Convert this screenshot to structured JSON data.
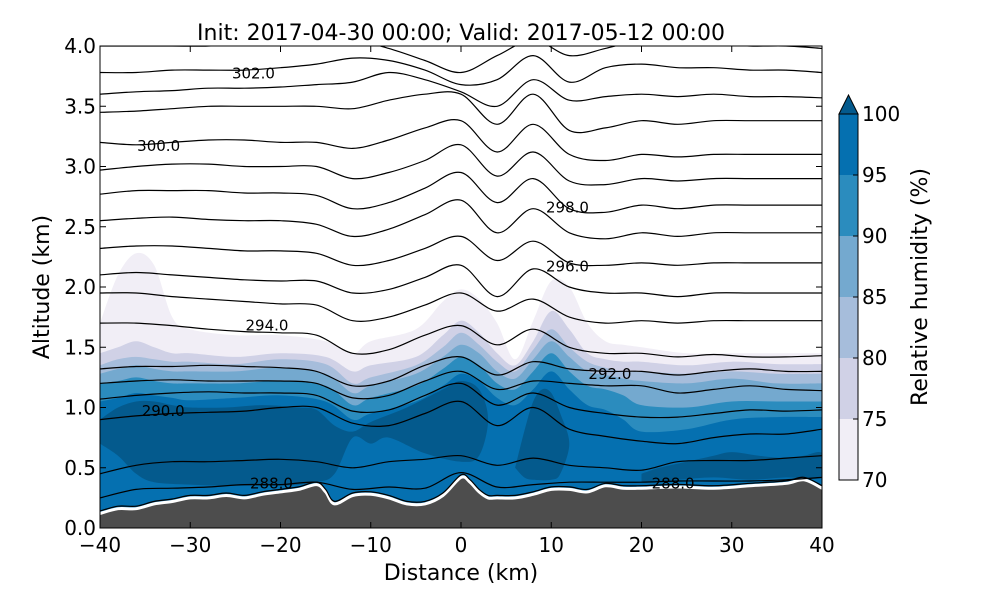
{
  "chart_data": {
    "type": "heatmap",
    "title": "Init: 2017-04-30 00:00; Valid: 2017-05-12 00:00",
    "xlabel": "Distance (km)",
    "ylabel": "Altitude (km)",
    "xlim": [
      -40,
      40
    ],
    "ylim": [
      0.0,
      4.0
    ],
    "xticks": [
      "−40",
      "−30",
      "−20",
      "−10",
      "0",
      "10",
      "20",
      "30",
      "40"
    ],
    "xtick_values": [
      -40,
      -30,
      -20,
      -10,
      0,
      10,
      20,
      30,
      40
    ],
    "yticks": [
      "0.0",
      "0.5",
      "1.0",
      "1.5",
      "2.0",
      "2.5",
      "3.0",
      "3.5",
      "4.0"
    ],
    "ytick_values": [
      0.0,
      0.5,
      1.0,
      1.5,
      2.0,
      2.5,
      3.0,
      3.5,
      4.0
    ],
    "colorbar": {
      "label": "Relative humidity (%)",
      "ticks": [
        "70",
        "75",
        "80",
        "85",
        "90",
        "95",
        "100"
      ],
      "levels": [
        70,
        75,
        80,
        85,
        90,
        95,
        100
      ],
      "colors": [
        "#f1eef6",
        "#d0d1e6",
        "#a6bddb",
        "#74a9cf",
        "#2b8cbe",
        "#0570b0",
        "#045a8d"
      ],
      "extend": "max"
    },
    "terrain": {
      "color": "#4d4d4d",
      "x": [
        -40,
        -38,
        -36,
        -34,
        -32,
        -30,
        -28,
        -26,
        -24,
        -22,
        -20,
        -18,
        -16,
        -15,
        -14,
        -12,
        -10,
        -8,
        -6,
        -4,
        -2,
        0,
        1,
        2,
        3,
        4,
        6,
        8,
        10,
        12,
        14,
        16,
        18,
        20,
        24,
        28,
        32,
        36,
        38,
        40
      ],
      "y": [
        0.12,
        0.16,
        0.16,
        0.2,
        0.22,
        0.25,
        0.25,
        0.27,
        0.25,
        0.28,
        0.3,
        0.32,
        0.36,
        0.3,
        0.2,
        0.27,
        0.28,
        0.25,
        0.2,
        0.2,
        0.27,
        0.42,
        0.38,
        0.3,
        0.25,
        0.25,
        0.25,
        0.28,
        0.32,
        0.32,
        0.3,
        0.35,
        0.33,
        0.33,
        0.34,
        0.33,
        0.35,
        0.37,
        0.4,
        0.33
      ]
    },
    "rh_fields": [
      {
        "level": 70,
        "x": [
          -40,
          -38,
          -36,
          -34,
          -32,
          -30,
          -25,
          -20,
          -15,
          -12,
          -10,
          -5,
          -2,
          0,
          2,
          4,
          6,
          8,
          10,
          12,
          14,
          16,
          18,
          20,
          25,
          30,
          35,
          40
        ],
        "top": [
          1.7,
          2.1,
          2.28,
          2.18,
          1.75,
          1.65,
          1.6,
          1.6,
          1.55,
          1.45,
          1.55,
          1.65,
          1.88,
          1.98,
          1.9,
          1.7,
          1.4,
          1.72,
          2.05,
          2.0,
          1.7,
          1.55,
          1.52,
          1.5,
          1.45,
          1.45,
          1.45,
          1.45
        ]
      },
      {
        "level": 75,
        "x": [
          -40,
          -38,
          -36,
          -34,
          -32,
          -30,
          -25,
          -20,
          -15,
          -12,
          -10,
          -5,
          -2,
          0,
          2,
          4,
          6,
          8,
          10,
          12,
          14,
          16,
          18,
          20,
          25,
          30,
          35,
          40
        ],
        "top": [
          1.45,
          1.5,
          1.55,
          1.5,
          1.45,
          1.45,
          1.42,
          1.45,
          1.42,
          1.3,
          1.35,
          1.42,
          1.6,
          1.72,
          1.62,
          1.45,
          1.35,
          1.55,
          1.8,
          1.65,
          1.45,
          1.4,
          1.38,
          1.38,
          1.35,
          1.38,
          1.36,
          1.36
        ]
      },
      {
        "level": 80,
        "x": [
          -40,
          -38,
          -36,
          -34,
          -32,
          -30,
          -25,
          -20,
          -15,
          -12,
          -10,
          -5,
          -2,
          0,
          2,
          4,
          6,
          8,
          10,
          12,
          14,
          16,
          18,
          20,
          25,
          30,
          35,
          40
        ],
        "top": [
          1.35,
          1.4,
          1.42,
          1.4,
          1.38,
          1.38,
          1.36,
          1.4,
          1.36,
          1.2,
          1.25,
          1.35,
          1.5,
          1.62,
          1.52,
          1.38,
          1.3,
          1.48,
          1.65,
          1.5,
          1.38,
          1.33,
          1.3,
          1.3,
          1.28,
          1.3,
          1.28,
          1.28
        ]
      },
      {
        "level": 85,
        "x": [
          -40,
          -38,
          -36,
          -34,
          -32,
          -30,
          -25,
          -20,
          -15,
          -12,
          -10,
          -5,
          -2,
          0,
          2,
          4,
          6,
          8,
          10,
          12,
          14,
          16,
          18,
          20,
          25,
          30,
          35,
          40
        ],
        "top": [
          1.28,
          1.32,
          1.35,
          1.32,
          1.3,
          1.3,
          1.3,
          1.33,
          1.28,
          1.12,
          1.18,
          1.28,
          1.42,
          1.52,
          1.45,
          1.3,
          1.24,
          1.4,
          1.55,
          1.42,
          1.3,
          1.27,
          1.24,
          1.22,
          1.2,
          1.24,
          1.2,
          1.2
        ]
      },
      {
        "level": 90,
        "x": [
          -40,
          -38,
          -36,
          -34,
          -32,
          -30,
          -25,
          -20,
          -15,
          -12,
          -10,
          -5,
          -2,
          0,
          2,
          4,
          6,
          8,
          10,
          12,
          14,
          16,
          18,
          20,
          25,
          30,
          35,
          40
        ],
        "top": [
          1.2,
          1.22,
          1.25,
          1.22,
          1.2,
          1.2,
          1.2,
          1.22,
          1.18,
          1.02,
          1.08,
          1.18,
          1.32,
          1.42,
          1.35,
          1.2,
          1.15,
          1.3,
          1.45,
          1.3,
          1.18,
          1.15,
          1.1,
          1.02,
          1.0,
          1.05,
          1.05,
          1.05
        ]
      },
      {
        "level": 95,
        "x": [
          -40,
          -38,
          -36,
          -34,
          -32,
          -30,
          -25,
          -20,
          -15,
          -12,
          -10,
          -5,
          -2,
          0,
          2,
          4,
          6,
          8,
          10,
          12,
          14,
          16,
          18,
          20,
          25,
          30,
          35,
          40
        ],
        "top": [
          1.05,
          1.08,
          1.12,
          1.1,
          1.08,
          1.06,
          1.08,
          1.1,
          1.05,
          0.9,
          0.95,
          1.05,
          1.18,
          1.28,
          1.22,
          1.08,
          1.02,
          1.15,
          1.3,
          1.15,
          1.02,
          0.98,
          0.9,
          0.8,
          0.82,
          0.9,
          0.92,
          0.92
        ]
      }
    ],
    "saturated_cores": [
      {
        "x": [
          -40,
          -38,
          -36,
          -34,
          -32,
          -30,
          -26,
          -22,
          -18,
          -16,
          -14,
          -12,
          -10,
          -6,
          -2,
          0,
          2,
          3,
          2,
          0,
          -4,
          -8,
          -10,
          -12,
          -14,
          -16,
          -20,
          -26,
          -30,
          -34,
          -36,
          -38,
          -40
        ],
        "y": [
          0.9,
          1.0,
          1.05,
          1.05,
          1.02,
          1.0,
          1.0,
          1.02,
          1.0,
          0.98,
          0.85,
          0.8,
          0.88,
          1.0,
          1.15,
          1.22,
          1.15,
          0.9,
          0.6,
          0.55,
          0.62,
          0.75,
          0.7,
          0.75,
          0.45,
          0.38,
          0.35,
          0.35,
          0.36,
          0.38,
          0.45,
          0.6,
          0.7
        ]
      },
      {
        "x": [
          6,
          7,
          8,
          9,
          10,
          11,
          12,
          11,
          10,
          8,
          7,
          6
        ],
        "y": [
          0.5,
          0.8,
          1.05,
          1.15,
          1.12,
          0.95,
          0.7,
          0.45,
          0.4,
          0.4,
          0.42,
          0.5
        ]
      },
      {
        "x": [
          20,
          22,
          25,
          28,
          30,
          33,
          36,
          38,
          40,
          40,
          36,
          32,
          28,
          24,
          20
        ],
        "y": [
          0.45,
          0.5,
          0.55,
          0.6,
          0.63,
          0.6,
          0.58,
          0.6,
          0.62,
          0.42,
          0.42,
          0.4,
          0.42,
          0.4,
          0.38
        ]
      }
    ],
    "isentropes": {
      "x": [
        -40,
        -36,
        -32,
        -28,
        -24,
        -20,
        -16,
        -12,
        -8,
        -4,
        0,
        4,
        8,
        12,
        16,
        20,
        24,
        28,
        32,
        36,
        40
      ],
      "shape": [
        0,
        0.02,
        0.01,
        0,
        0,
        0.01,
        -0.02,
        -0.1,
        -0.08,
        0,
        0.07,
        -0.06,
        0.1,
        -0.05,
        0.02,
        -0.01,
        -0.05,
        -0.02,
        0.01,
        -0.01,
        0
      ],
      "labeled": [
        {
          "text": "288.0",
          "x": -21,
          "y": 0.37
        },
        {
          "text": "288.0",
          "x": 23.5,
          "y": 0.37
        },
        {
          "text": "290.0",
          "x": -33,
          "y": 0.97
        },
        {
          "text": "292.0",
          "x": 16.5,
          "y": 1.28
        },
        {
          "text": "294.0",
          "x": -21.5,
          "y": 1.68
        },
        {
          "text": "296.0",
          "x": 11.8,
          "y": 2.17
        },
        {
          "text": "298.0",
          "x": 11.8,
          "y": 2.66
        },
        {
          "text": "300.0",
          "x": -33.5,
          "y": 3.17
        },
        {
          "text": "302.0",
          "x": -23,
          "y": 3.77
        }
      ],
      "levels": [
        {
          "value": 288.0,
          "base": [
            0.25,
            0.32,
            0.33,
            0.34,
            0.36,
            0.36,
            0.38,
            0.32,
            0.34,
            0.33,
            0.46,
            0.34,
            0.36,
            0.38,
            0.38,
            0.38,
            0.39,
            0.39,
            0.39,
            0.4,
            0.42
          ],
          "amp": 0
        },
        {
          "value": 289.0,
          "base": [
            0.45,
            0.52,
            0.55,
            0.55,
            0.56,
            0.57,
            0.55,
            0.5,
            0.55,
            0.57,
            0.6,
            0.52,
            0.58,
            0.52,
            0.5,
            0.48,
            0.55,
            0.56,
            0.56,
            0.58,
            0.6
          ],
          "amp": 0
        },
        {
          "value": 290.0,
          "base": [
            0.9,
            0.93,
            0.95,
            0.96,
            0.97,
            1.0,
            1.0,
            0.87,
            0.85,
            0.95,
            1.05,
            0.85,
            1.0,
            0.82,
            0.76,
            0.72,
            0.7,
            0.75,
            0.78,
            0.78,
            0.82
          ],
          "amp": 0
        },
        {
          "value": 291.0,
          "base": [
            1.07,
            1.1,
            1.12,
            1.13,
            1.12,
            1.12,
            1.1,
            0.97,
            0.98,
            1.1,
            1.2,
            1.02,
            1.12,
            1.0,
            0.95,
            0.92,
            0.92,
            0.95,
            0.98,
            0.97,
            0.98
          ],
          "amp": 0
        },
        {
          "value": 292.0,
          "base": [
            1.2,
            1.22,
            1.23,
            1.22,
            1.22,
            1.22,
            1.2,
            1.08,
            1.1,
            1.22,
            1.3,
            1.15,
            1.22,
            1.2,
            1.18,
            1.18,
            1.12,
            1.15,
            1.18,
            1.15,
            1.14
          ],
          "amp": 0
        },
        {
          "value": 293.0,
          "base": [
            1.32,
            1.34,
            1.34,
            1.35,
            1.34,
            1.33,
            1.3,
            1.18,
            1.22,
            1.35,
            1.42,
            1.27,
            1.38,
            1.32,
            1.3,
            1.3,
            1.27,
            1.3,
            1.32,
            1.3,
            1.3
          ],
          "amp": 0
        },
        {
          "value": 294.0,
          "base": [
            1.7,
            1.7,
            1.68,
            1.65,
            1.63,
            1.62,
            1.6,
            1.45,
            1.48,
            1.6,
            1.68,
            1.52,
            1.65,
            1.5,
            1.45,
            1.45,
            1.42,
            1.44,
            1.42,
            1.42,
            1.43
          ],
          "amp": 0
        },
        {
          "value": 295.0,
          "base": [
            1.95,
            1.95,
            1.92,
            1.9,
            1.88,
            1.86,
            1.85,
            1.72,
            1.75,
            1.85,
            1.95,
            1.8,
            1.9,
            1.75,
            1.7,
            1.72,
            1.7,
            1.72,
            1.72,
            1.72,
            1.72
          ],
          "amp": 0
        },
        {
          "value": 296.0,
          "base": [
            2.1,
            2.12,
            2.1,
            2.08,
            2.06,
            2.05,
            2.05,
            1.95,
            1.98,
            2.08,
            2.18,
            1.92,
            2.15,
            2.0,
            1.95,
            1.95,
            1.92,
            1.95,
            1.95,
            1.95,
            1.95
          ],
          "amp": 0
        },
        {
          "value": 297.0,
          "base": [
            2.32,
            2.34,
            2.34,
            2.32,
            2.3,
            2.3,
            2.28,
            2.18,
            2.22,
            2.32,
            2.42,
            2.22,
            2.38,
            2.2,
            2.18,
            2.2,
            2.18,
            2.2,
            2.2,
            2.2,
            2.2
          ],
          "amp": 0
        },
        {
          "value": 298.0,
          "base": [
            2.55,
            2.57,
            2.58,
            2.56,
            2.55,
            2.55,
            2.52,
            2.42,
            2.48,
            2.6,
            2.72,
            2.45,
            2.65,
            2.45,
            2.4,
            2.45,
            2.42,
            2.45,
            2.45,
            2.45,
            2.45
          ],
          "amp": 0
        },
        {
          "value": 299.0,
          "base": [
            2.77,
            2.8,
            2.8,
            2.8,
            2.78,
            2.78,
            2.76,
            2.65,
            2.7,
            2.82,
            2.95,
            2.7,
            2.9,
            2.65,
            2.62,
            2.68,
            2.65,
            2.68,
            2.68,
            2.68,
            2.68
          ],
          "amp": 0
        },
        {
          "value": 299.5,
          "base": [
            2.97,
            3.0,
            3.02,
            3.02,
            3.0,
            3.0,
            3.0,
            2.9,
            2.95,
            3.05,
            3.18,
            2.92,
            3.12,
            2.88,
            2.85,
            2.9,
            2.88,
            2.9,
            2.9,
            2.9,
            2.9
          ],
          "amp": 0
        },
        {
          "value": 300.0,
          "base": [
            3.2,
            3.18,
            3.2,
            3.22,
            3.22,
            3.2,
            3.2,
            3.15,
            3.22,
            3.32,
            3.38,
            3.12,
            3.35,
            3.1,
            3.05,
            3.1,
            3.08,
            3.1,
            3.1,
            3.1,
            3.1
          ],
          "amp": 0
        },
        {
          "value": 301.0,
          "base": [
            3.45,
            3.46,
            3.48,
            3.5,
            3.5,
            3.5,
            3.5,
            3.48,
            3.55,
            3.6,
            3.6,
            3.35,
            3.6,
            3.3,
            3.32,
            3.38,
            3.35,
            3.38,
            3.38,
            3.38,
            3.38
          ],
          "amp": 0
        },
        {
          "value": 301.5,
          "base": [
            3.6,
            3.62,
            3.63,
            3.65,
            3.65,
            3.66,
            3.68,
            3.7,
            3.78,
            3.72,
            3.62,
            3.5,
            3.72,
            3.55,
            3.58,
            3.6,
            3.58,
            3.6,
            3.58,
            3.58,
            3.57
          ],
          "amp": 0
        },
        {
          "value": 302.0,
          "base": [
            3.78,
            3.78,
            3.8,
            3.8,
            3.8,
            3.82,
            3.85,
            3.9,
            3.88,
            3.8,
            3.68,
            3.72,
            3.92,
            3.7,
            3.82,
            3.85,
            3.82,
            3.82,
            3.8,
            3.8,
            3.78
          ],
          "amp": 0
        },
        {
          "value": 303.0,
          "base": [
            4.0,
            4.0,
            4.0,
            4.0,
            4.02,
            4.05,
            4.05,
            4.05,
            3.98,
            3.88,
            3.78,
            3.92,
            4.05,
            3.92,
            3.98,
            4.05,
            4.05,
            4.02,
            4.0,
            4.0,
            3.98
          ],
          "amp": 0
        }
      ]
    }
  }
}
